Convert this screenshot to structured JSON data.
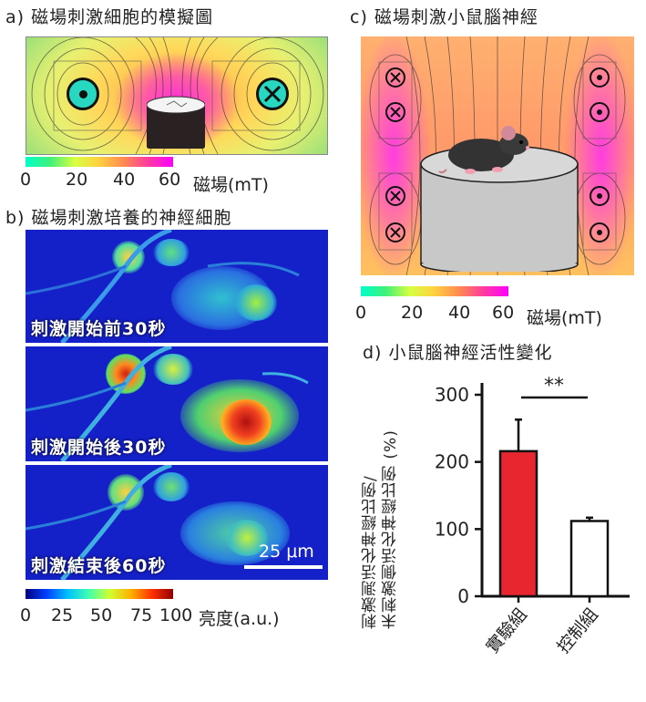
{
  "panel_a": {
    "title": "a) 磁場刺激細胞的模擬圖",
    "colorbar": {
      "ticks": [
        "0",
        "20",
        "40",
        "60"
      ],
      "label": "磁場(mT)"
    },
    "coil_left_symbol": "⊙",
    "coil_right_symbol": "⊗"
  },
  "panel_b": {
    "title": "b) 磁場刺激培養的神經細胞",
    "frames": [
      {
        "label": "刺激開始前30秒"
      },
      {
        "label": "刺激開始後30秒"
      },
      {
        "label": "刺激結束後60秒"
      }
    ],
    "scalebar": "25 μm",
    "colorbar": {
      "ticks": [
        "0",
        "25",
        "50",
        "75",
        "100"
      ],
      "label": "亮度(a.u.)"
    }
  },
  "panel_c": {
    "title": "c) 磁場刺激小鼠腦神經",
    "colorbar": {
      "ticks": [
        "0",
        "20",
        "40",
        "60"
      ],
      "label": "磁場(mT)"
    }
  },
  "panel_d": {
    "title": "d) 小鼠腦神經活性變化",
    "ylabel_line1": "刺激測活化神經比例/",
    "ylabel_line2": "未刺激側活化神經比例 (%)",
    "significance": "**",
    "colors": {
      "experimental": "#e8262f",
      "control": "#ffffff"
    }
  },
  "chart_data": {
    "type": "bar",
    "categories": [
      "實驗組",
      "控制組"
    ],
    "values": [
      216,
      112
    ],
    "errors": [
      47,
      5
    ],
    "yticks": [
      0,
      100,
      200,
      300
    ],
    "ylim": [
      0,
      330
    ],
    "title": "d) 小鼠腦神經活性變化",
    "ylabel": "刺激測活化神經比例/未刺激側活化神經比例 (%)",
    "annotation": "**"
  }
}
